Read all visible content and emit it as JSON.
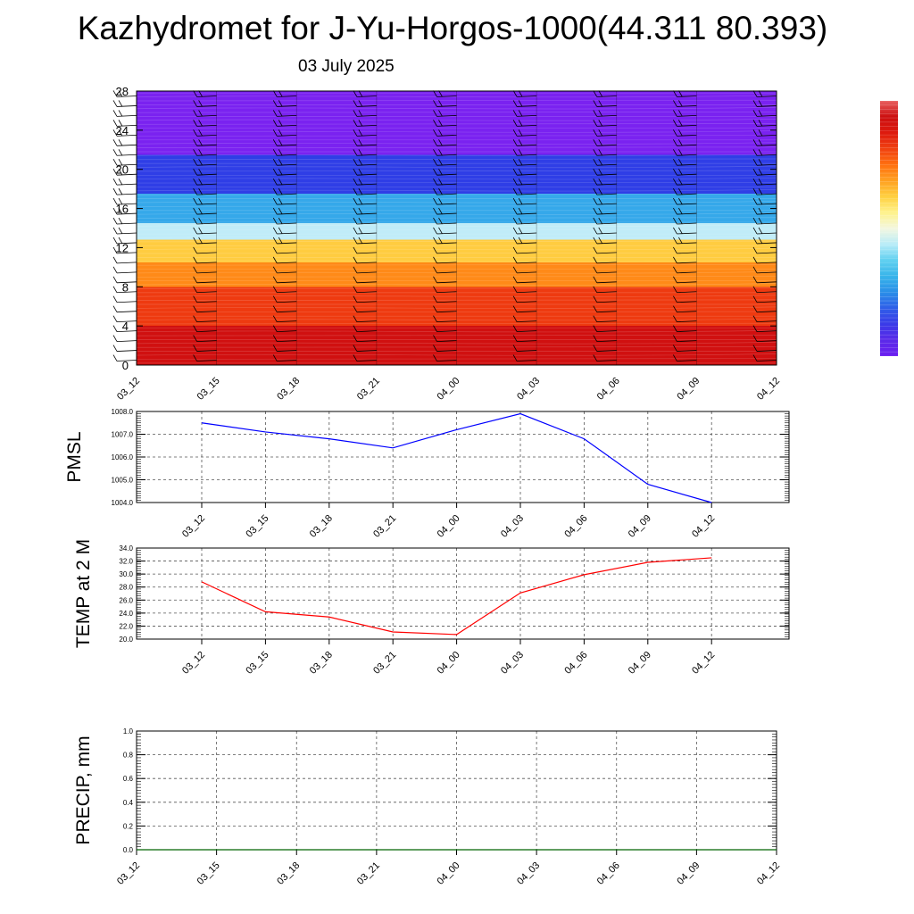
{
  "header": {
    "title": "Kazhydromet for J-Yu-Horgos-1000(44.311 80.393)",
    "date": "03 July 2025"
  },
  "colors": {
    "pmsl_line": "#0000ff",
    "temp_line": "#ff0000",
    "precip_line": "#006400",
    "colorbar": [
      "#6b1ff0",
      "#5a2ae8",
      "#3a3ae8",
      "#2f5ee8",
      "#2a8ee8",
      "#38b4ea",
      "#5fd0f0",
      "#b8ecf8",
      "#f3f7e0",
      "#fff28a",
      "#ffd040",
      "#ffa020",
      "#ff7010",
      "#f04010",
      "#dd1a0e",
      "#cc1010",
      "#e86060"
    ]
  },
  "chart_data": [
    {
      "type": "heatmap",
      "x_ticks": [
        "03_12",
        "03_15",
        "03_18",
        "03_21",
        "04_00",
        "04_03",
        "04_06",
        "04_09",
        "04_12"
      ],
      "y_ticks": [
        "0",
        "4",
        "8",
        "12",
        "16",
        "20",
        "24",
        "28"
      ],
      "ylim": [
        0,
        28
      ],
      "note_layers": [
        {
          "y_from": 0,
          "y_to": 4,
          "color": "#d01010"
        },
        {
          "y_from": 4,
          "y_to": 8,
          "color": "#ee3a10"
        },
        {
          "y_from": 8,
          "y_to": 10.5,
          "color": "#ff8a18"
        },
        {
          "y_from": 10.5,
          "y_to": 12.8,
          "color": "#ffcc40"
        },
        {
          "y_from": 12.8,
          "y_to": 14.5,
          "color": "#c0ecf8"
        },
        {
          "y_from": 14.5,
          "y_to": 17.5,
          "color": "#35a8ea"
        },
        {
          "y_from": 17.5,
          "y_to": 21.5,
          "color": "#2f3ee6"
        },
        {
          "y_from": 21.5,
          "y_to": 28,
          "color": "#7a22f0"
        }
      ],
      "wind_barb_columns": [
        "03_12",
        "03_15",
        "03_18",
        "03_21",
        "04_00",
        "04_03",
        "04_06",
        "04_09",
        "04_12"
      ]
    },
    {
      "type": "line",
      "ylabel": "PMSL",
      "categories": [
        "03_12",
        "03_15",
        "03_18",
        "03_21",
        "04_00",
        "04_03",
        "04_06",
        "04_09",
        "04_12"
      ],
      "values": [
        1007.5,
        1007.1,
        1006.8,
        1006.4,
        1007.2,
        1007.9,
        1006.8,
        1004.8,
        1004.0
      ],
      "ylim": [
        1004.0,
        1008.0
      ],
      "y_ticks": [
        "1004.0",
        "1005.0",
        "1006.0",
        "1007.0",
        "1008.0"
      ],
      "grid": true
    },
    {
      "type": "line",
      "ylabel": "TEMP at 2 M",
      "categories": [
        "03_12",
        "03_15",
        "03_18",
        "03_21",
        "04_00",
        "04_03",
        "04_06",
        "04_09",
        "04_12"
      ],
      "values": [
        28.8,
        24.2,
        23.4,
        21.1,
        20.7,
        27.1,
        29.9,
        31.8,
        32.5
      ],
      "ylim": [
        20.0,
        34.0
      ],
      "y_ticks": [
        "20.0",
        "22.0",
        "24.0",
        "26.0",
        "28.0",
        "30.0",
        "32.0",
        "34.0"
      ],
      "grid": true
    },
    {
      "type": "line",
      "ylabel": "PRECIP, mm",
      "categories": [
        "03_12",
        "03_15",
        "03_18",
        "03_21",
        "04_00",
        "04_03",
        "04_06",
        "04_09",
        "04_12"
      ],
      "values": [
        0,
        0,
        0,
        0,
        0,
        0,
        0,
        0,
        0
      ],
      "ylim": [
        0.0,
        1.0
      ],
      "y_ticks": [
        "0.0",
        "0.2",
        "0.4",
        "0.6",
        "0.8",
        "1.0"
      ],
      "grid": true
    }
  ]
}
